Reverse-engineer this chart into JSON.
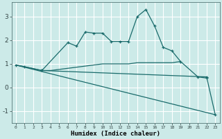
{
  "xlabel": "Humidex (Indice chaleur)",
  "background_color": "#cceae8",
  "grid_color": "#ffffff",
  "line_color": "#1a6b6b",
  "line1_x": [
    0,
    1,
    3,
    6,
    7,
    8,
    9,
    10,
    11,
    12,
    13,
    14,
    15,
    16,
    17,
    18,
    19,
    21,
    22
  ],
  "line1_y": [
    0.95,
    0.88,
    0.72,
    1.9,
    1.75,
    2.35,
    2.3,
    2.3,
    1.95,
    1.95,
    1.95,
    3.0,
    3.3,
    2.6,
    1.7,
    1.55,
    1.1,
    0.45,
    0.4
  ],
  "line2_x": [
    0,
    1,
    3,
    4,
    10,
    11,
    12,
    13,
    14,
    15,
    16,
    17,
    18,
    19
  ],
  "line2_y": [
    0.95,
    0.88,
    0.72,
    0.72,
    1.0,
    1.0,
    1.0,
    1.0,
    1.05,
    1.05,
    1.05,
    1.05,
    1.05,
    1.1
  ],
  "line3_x": [
    0,
    23
  ],
  "line3_y": [
    0.95,
    -1.15
  ],
  "line4_x": [
    3,
    22,
    23
  ],
  "line4_y": [
    0.72,
    0.45,
    -1.15
  ],
  "xlim": [
    -0.5,
    23.5
  ],
  "ylim": [
    -1.5,
    3.6
  ],
  "yticks": [
    -1,
    0,
    1,
    2,
    3
  ],
  "xticks": [
    0,
    1,
    2,
    3,
    4,
    5,
    6,
    7,
    8,
    9,
    10,
    11,
    12,
    13,
    14,
    15,
    16,
    17,
    18,
    19,
    20,
    21,
    22,
    23
  ]
}
